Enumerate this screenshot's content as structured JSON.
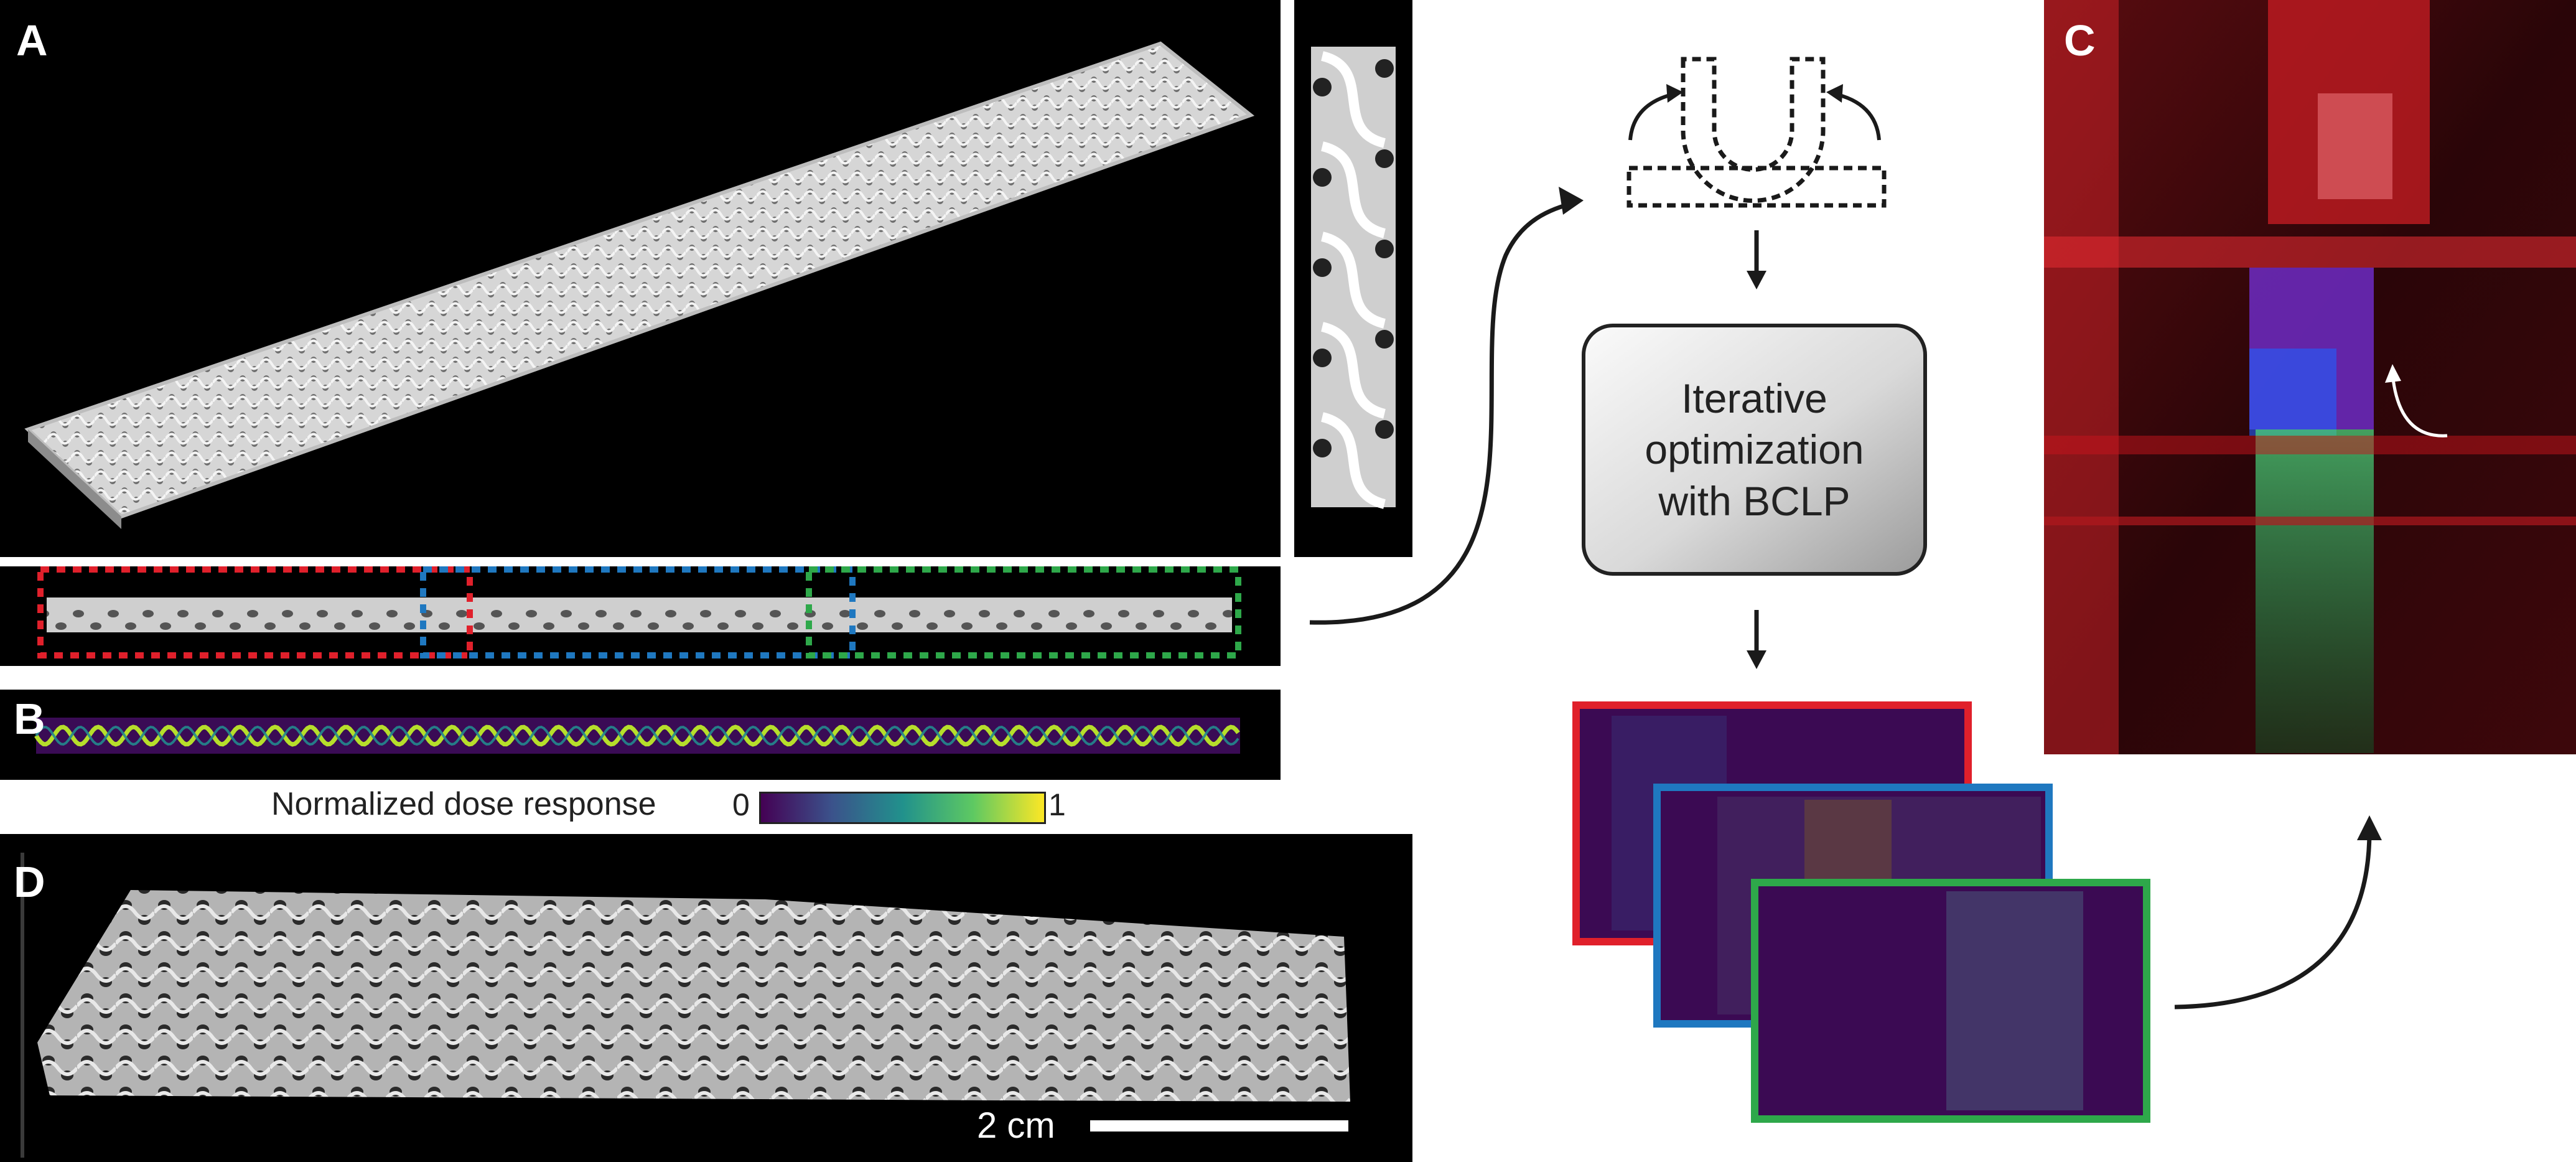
{
  "panel_labels": {
    "a": "A",
    "b": "B",
    "c": "C",
    "d": "D"
  },
  "colorbar": {
    "label": "Normalized dose response",
    "min": "0",
    "max": "1"
  },
  "optimization_box": {
    "text": "Iterative\noptimization\nwith BCLP"
  },
  "scalebar": {
    "label": "2 cm"
  },
  "colors": {
    "red": "#e0202b",
    "blue": "#1f78c0",
    "green": "#2ea84a",
    "viridis_dark": "#440154",
    "viridis_bright": "#fde725"
  }
}
